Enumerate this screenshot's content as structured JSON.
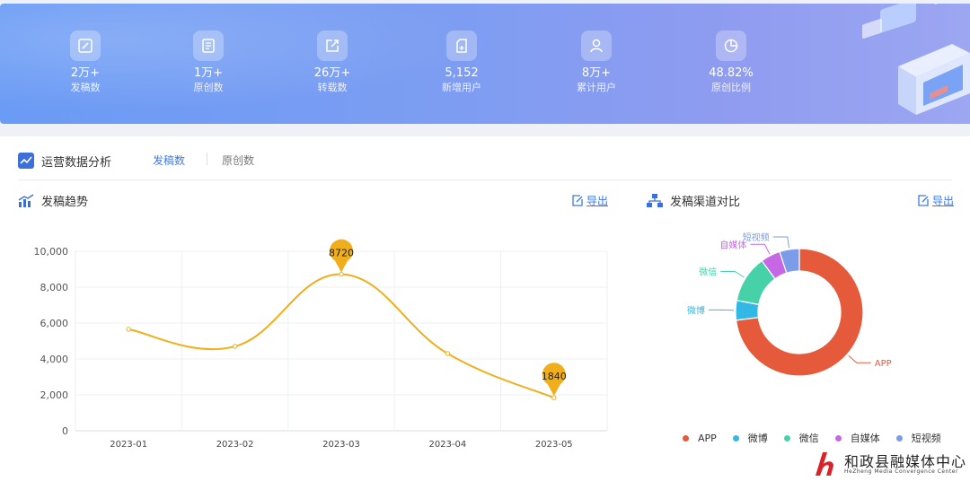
{
  "stats": [
    {
      "value": "2万+",
      "label": "发稿数",
      "icon": "edit-icon"
    },
    {
      "value": "1万+",
      "label": "原创数",
      "icon": "book-icon"
    },
    {
      "value": "26万+",
      "label": "转载数",
      "icon": "share-icon"
    },
    {
      "value": "5,152",
      "label": "新增用户",
      "icon": "add-document-icon"
    },
    {
      "value": "8万+",
      "label": "累计用户",
      "icon": "user-icon"
    },
    {
      "value": "48.82%",
      "label": "原创比例",
      "icon": "pie-icon"
    }
  ],
  "panel": {
    "title": "运营数据分析",
    "tabs": [
      "发稿数",
      "原创数"
    ]
  },
  "trend": {
    "title": "发稿趋势",
    "export_label": "导出"
  },
  "channels": {
    "title": "发稿渠道对比",
    "export_label": "导出"
  },
  "chart_data": [
    {
      "type": "line",
      "categories": [
        "2023-01",
        "2023-02",
        "2023-03",
        "2023-04",
        "2023-05"
      ],
      "values": [
        5650,
        4700,
        8720,
        4300,
        1840
      ],
      "ylim": [
        0,
        10000
      ],
      "yticks": [
        "0",
        "2,000",
        "4,000",
        "6,000",
        "8,000",
        "10,000"
      ],
      "markers": [
        {
          "index": 2,
          "label": "8720"
        },
        {
          "index": 4,
          "label": "1840"
        }
      ],
      "color": "#f0ae1c",
      "grid": true
    },
    {
      "type": "pie",
      "donut": true,
      "slices": [
        {
          "name": "APP",
          "value": 73,
          "color": "#e55a3a"
        },
        {
          "name": "微博",
          "value": 5,
          "color": "#33b8e6"
        },
        {
          "name": "微信",
          "value": 12,
          "color": "#47d1a8"
        },
        {
          "name": "自媒体",
          "value": 5,
          "color": "#c668e6"
        },
        {
          "name": "短视频",
          "value": 5,
          "color": "#7c9be8"
        }
      ],
      "legend": "bottom"
    }
  ],
  "watermark": {
    "main": "和政县融媒体中心",
    "sub": "HeZheng Media Convergence Center"
  }
}
